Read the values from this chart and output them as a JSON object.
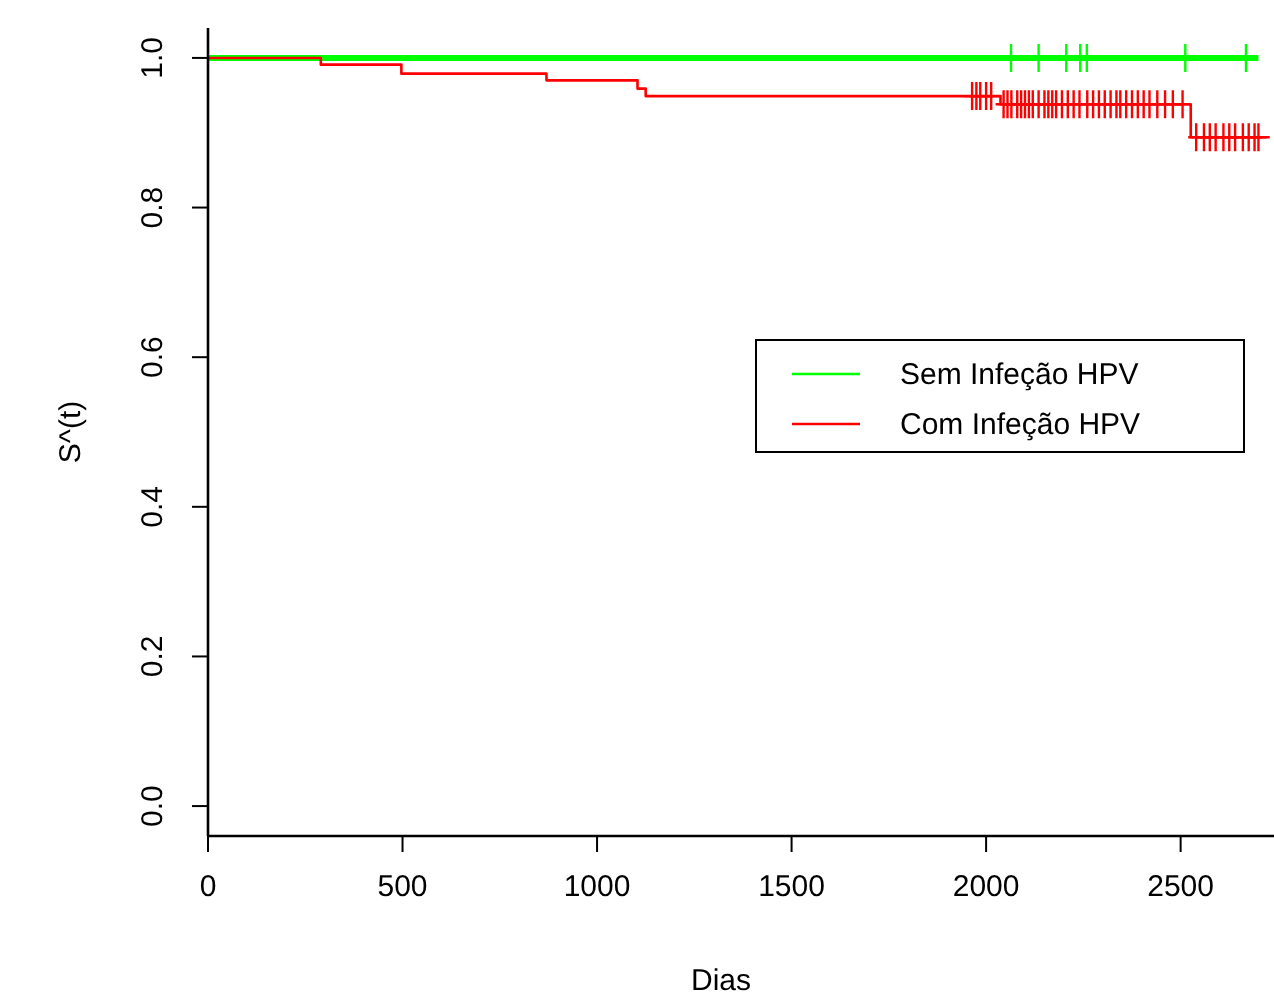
{
  "chart_data": {
    "type": "step",
    "xlabel": "Dias",
    "ylabel": "S^(t)",
    "xlim": [
      0,
      2740
    ],
    "ylim": [
      -0.04,
      1.04
    ],
    "xticks": [
      0,
      500,
      1000,
      1500,
      2000,
      2500
    ],
    "yticks": [
      {
        "value": 0,
        "label": "0.0"
      },
      {
        "value": 0.2,
        "label": "0.2"
      },
      {
        "value": 0.4,
        "label": "0.4"
      },
      {
        "value": 0.6,
        "label": "0.6"
      },
      {
        "value": 0.8,
        "label": "0.8"
      },
      {
        "value": 1,
        "label": "1.0"
      }
    ],
    "grid": false,
    "legend": "right",
    "series": [
      {
        "name": "Sem Infeção HPV",
        "color": "#00ff00",
        "x": [
          0,
          2700
        ],
        "values": [
          1,
          1
        ]
      },
      {
        "name": "Com Infeção HPV",
        "color": "#ff0000",
        "x": [
          0,
          290,
          497,
          870,
          1104,
          1125,
          2037,
          2526,
          2729
        ],
        "values": [
          1,
          0.991,
          0.979,
          0.97,
          0.959,
          0.949,
          0.938,
          0.894,
          0.894
        ]
      },
      {
        "color": "#00ff00",
        "type": "scatter",
        "marker": "cross",
        "x": [
          2064,
          2135,
          2206,
          2242,
          2259,
          2512,
          2668
        ],
        "values": [
          1,
          1,
          1,
          1,
          1,
          1,
          1
        ]
      },
      {
        "color": "#ff0000",
        "type": "scatter",
        "marker": "cross",
        "x": [
          1964,
          1975,
          1985,
          2000,
          2013,
          2045,
          2055,
          2065,
          2080,
          2090,
          2100,
          2110,
          2120,
          2135,
          2150,
          2160,
          2170,
          2180,
          2195,
          2210,
          2225,
          2240,
          2260,
          2275,
          2290,
          2305,
          2320,
          2335,
          2345,
          2360,
          2375,
          2390,
          2405,
          2420,
          2440,
          2460,
          2480,
          2505,
          2540,
          2560,
          2575,
          2590,
          2610,
          2625,
          2640,
          2660,
          2675,
          2690,
          2700
        ],
        "values": [
          0.949,
          0.949,
          0.949,
          0.949,
          0.949,
          0.938,
          0.938,
          0.938,
          0.938,
          0.938,
          0.938,
          0.938,
          0.938,
          0.938,
          0.938,
          0.938,
          0.938,
          0.938,
          0.938,
          0.938,
          0.938,
          0.938,
          0.938,
          0.938,
          0.938,
          0.938,
          0.938,
          0.938,
          0.938,
          0.938,
          0.938,
          0.938,
          0.938,
          0.938,
          0.938,
          0.938,
          0.938,
          0.938,
          0.894,
          0.894,
          0.894,
          0.894,
          0.894,
          0.894,
          0.894,
          0.894,
          0.894,
          0.894,
          0.894
        ]
      }
    ]
  }
}
